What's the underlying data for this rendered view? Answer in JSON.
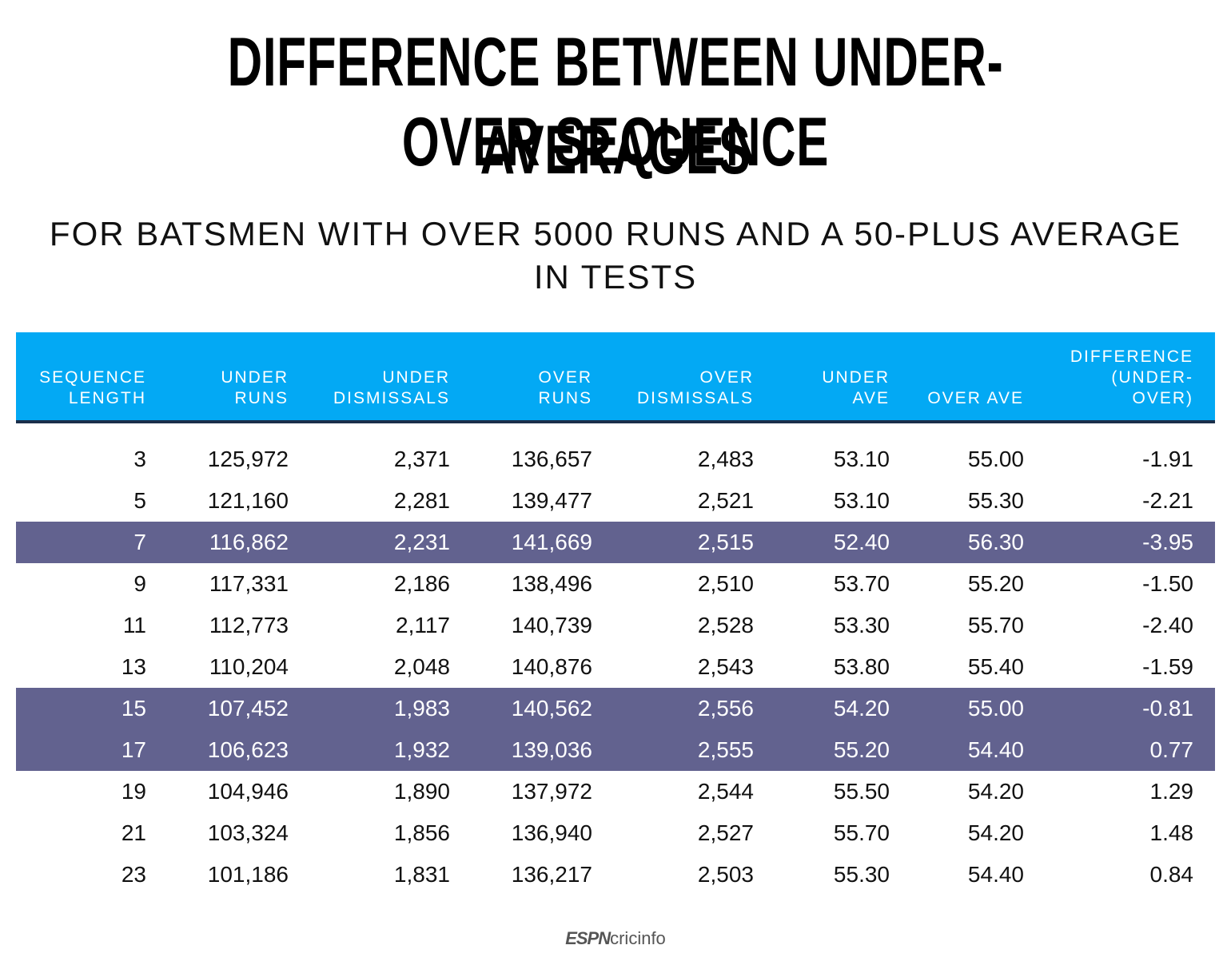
{
  "header": {
    "title_lines": [
      "DIFFERENCE BETWEEN UNDER-OVER SEQUENCE",
      "AVERAGES"
    ],
    "subtitle_lines": [
      "FOR BATSMEN WITH OVER 5000 RUNS AND A 50-PLUS AVERAGE",
      "IN TESTS"
    ]
  },
  "table": {
    "columns": [
      [
        "SEQUENCE",
        "LENGTH"
      ],
      [
        "UNDER",
        "RUNS"
      ],
      [
        "UNDER",
        "DISMISSALS"
      ],
      [
        "OVER",
        "RUNS"
      ],
      [
        "OVER",
        "DISMISSALS"
      ],
      [
        "UNDER",
        "AVE"
      ],
      [
        "OVER AVE"
      ],
      [
        "DIFFERENCE",
        "(UNDER-",
        "OVER)"
      ]
    ],
    "highlighted_rows": [
      2,
      6,
      7
    ],
    "rows": [
      [
        "3",
        "125,972",
        "2,371",
        "136,657",
        "2,483",
        "53.10",
        "55.00",
        "-1.91"
      ],
      [
        "5",
        "121,160",
        "2,281",
        "139,477",
        "2,521",
        "53.10",
        "55.30",
        "-2.21"
      ],
      [
        "7",
        "116,862",
        "2,231",
        "141,669",
        "2,515",
        "52.40",
        "56.30",
        "-3.95"
      ],
      [
        "9",
        "117,331",
        "2,186",
        "138,496",
        "2,510",
        "53.70",
        "55.20",
        "-1.50"
      ],
      [
        "11",
        "112,773",
        "2,117",
        "140,739",
        "2,528",
        "53.30",
        "55.70",
        "-2.40"
      ],
      [
        "13",
        "110,204",
        "2,048",
        "140,876",
        "2,543",
        "53.80",
        "55.40",
        "-1.59"
      ],
      [
        "15",
        "107,452",
        "1,983",
        "140,562",
        "2,556",
        "54.20",
        "55.00",
        "-0.81"
      ],
      [
        "17",
        "106,623",
        "1,932",
        "139,036",
        "2,555",
        "55.20",
        "54.40",
        "0.77"
      ],
      [
        "19",
        "104,946",
        "1,890",
        "137,972",
        "2,544",
        "55.50",
        "54.20",
        "1.29"
      ],
      [
        "21",
        "103,324",
        "1,856",
        "136,940",
        "2,527",
        "55.70",
        "54.20",
        "1.48"
      ],
      [
        "23",
        "101,186",
        "1,831",
        "136,217",
        "2,503",
        "55.30",
        "54.40",
        "0.84"
      ]
    ]
  },
  "footer": {
    "brand": "ESPN",
    "product": "cricinfo"
  }
}
